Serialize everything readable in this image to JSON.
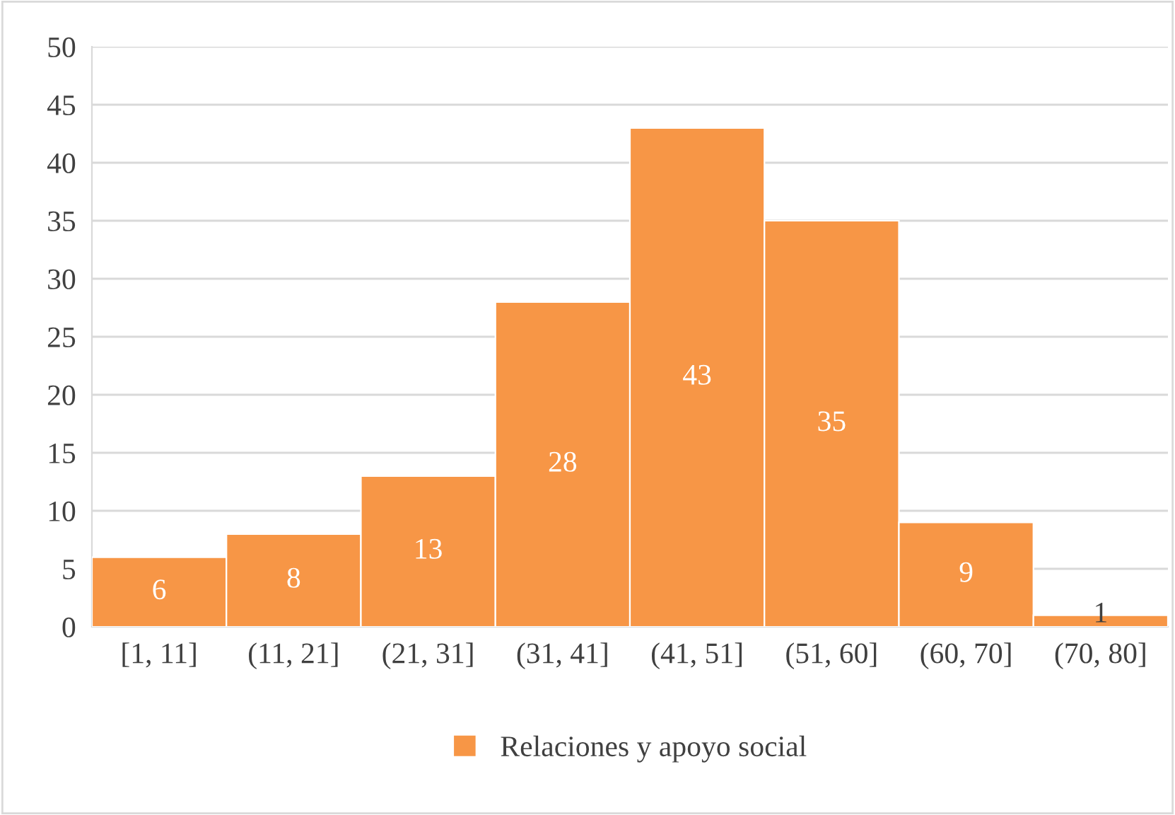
{
  "chart_data": {
    "type": "bar",
    "categories": [
      "[1, 11]",
      "(11, 21]",
      "(21, 31]",
      "(31, 41]",
      "(41, 51]",
      "(51, 60]",
      "(60, 70]",
      "(70, 80]"
    ],
    "series": [
      {
        "name": "Relaciones y apoyo social",
        "color": "#f79646",
        "values": [
          6,
          8,
          13,
          28,
          43,
          35,
          9,
          1
        ]
      }
    ],
    "ylim": [
      0,
      50
    ],
    "yticks": [
      0,
      5,
      10,
      15,
      20,
      25,
      30,
      35,
      40,
      45,
      50
    ],
    "grid": "y",
    "legend": "bottom",
    "data_labels": true
  }
}
